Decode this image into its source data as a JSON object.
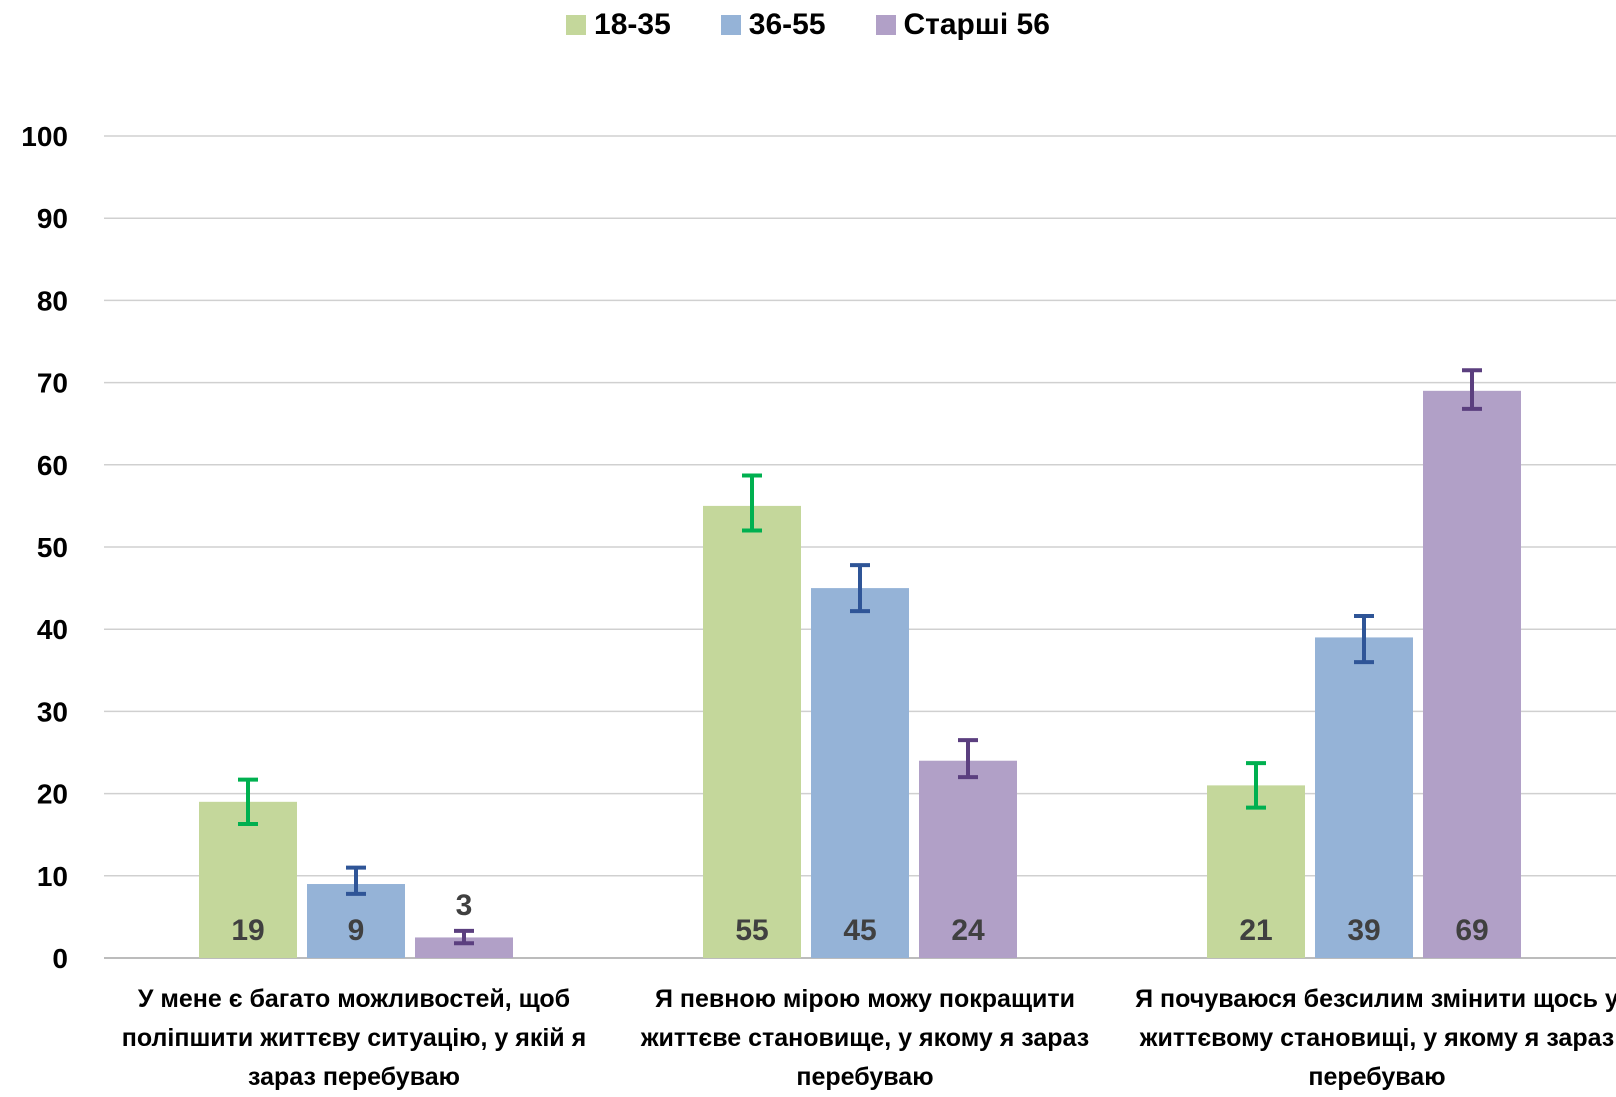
{
  "chart_data": {
    "type": "bar",
    "title": "",
    "xlabel": "",
    "ylabel": "",
    "ylim": [
      0,
      100
    ],
    "yticks": [
      0,
      10,
      20,
      30,
      40,
      50,
      60,
      70,
      80,
      90,
      100
    ],
    "grid": true,
    "legend_position": "top-center",
    "categories": [
      "У мене є багато можливостей, щоб поліпшити життєву ситуацію, у якій я зараз перебуваю",
      "Я певною мірою можу покращити життєве становище, у якому я зараз перебуваю",
      "Я почуваюся безсилим змінити щось у життєвому становищі, у якому я зараз перебуваю"
    ],
    "series": [
      {
        "name": "18-35",
        "color": "#c4d79b",
        "error_color": "#00b050",
        "values": [
          19,
          55,
          21
        ],
        "labels": [
          "19",
          "55",
          "21"
        ],
        "error_low": [
          16.3,
          52,
          18.3
        ],
        "error_high": [
          21.7,
          58.7,
          23.7
        ]
      },
      {
        "name": "36-55",
        "color": "#95b3d7",
        "error_color": "#2f5597",
        "values": [
          9,
          45,
          39
        ],
        "labels": [
          "9",
          "45",
          "39"
        ],
        "error_low": [
          7.8,
          42.2,
          36
        ],
        "error_high": [
          11,
          47.8,
          41.6
        ]
      },
      {
        "name": "Старші 56",
        "color": "#b1a0c7",
        "error_color": "#5b3f7f",
        "values": [
          2.5,
          24,
          69
        ],
        "labels": [
          "3",
          "24",
          "69"
        ],
        "error_low": [
          1.8,
          22,
          66.8
        ],
        "error_high": [
          3.3,
          26.5,
          71.5
        ]
      }
    ]
  }
}
